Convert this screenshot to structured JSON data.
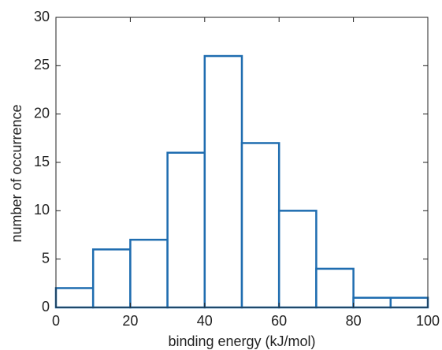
{
  "chart_data": {
    "type": "histogram",
    "xlabel": "binding energy (kJ/mol)",
    "ylabel": "number of occurrence",
    "bins": [
      0,
      10,
      20,
      30,
      40,
      50,
      60,
      70,
      80,
      90,
      100
    ],
    "values": [
      2,
      6,
      7,
      16,
      26,
      17,
      10,
      4,
      1,
      1
    ],
    "color": "#1f6db0",
    "xlim": [
      0,
      100
    ],
    "ylim": [
      0,
      30
    ],
    "xticks": [
      0,
      20,
      40,
      60,
      80,
      100
    ],
    "yticks": [
      0,
      5,
      10,
      15,
      20,
      25,
      30
    ],
    "grid": false
  }
}
